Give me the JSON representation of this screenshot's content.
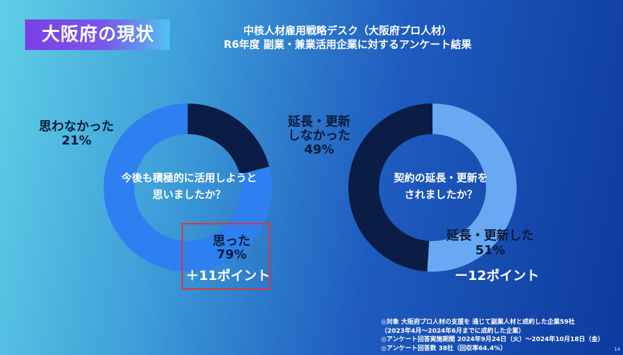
{
  "badge": "大阪府の現状",
  "header": {
    "line1": "中核人材雇用戦略デスク（大阪府プロ人材）",
    "line2": "R6年度 副業・兼業活用企業に対するアンケート結果"
  },
  "chart_data": [
    {
      "type": "pie",
      "question_line1": "今後も積極的に活用しようと",
      "question_line2": "思いましたか？",
      "slices": [
        {
          "name": "思った",
          "value": 79,
          "color": "#2e80f0"
        },
        {
          "name": "思わなかった",
          "value": 21,
          "color": "#0b1d45"
        }
      ],
      "labels": {
        "yes_name": "思った",
        "yes_pct": "79%",
        "no_name": "思わなかった",
        "no_pct": "21%"
      },
      "change": "＋11ポイント"
    },
    {
      "type": "pie",
      "question_line1": "契約の延長・更新を",
      "question_line2": "されましたか？",
      "slices": [
        {
          "name": "延長・更新した",
          "value": 51,
          "color": "#69a9f4"
        },
        {
          "name": "延長・更新しなかった",
          "value": 49,
          "color": "#0b1d45"
        }
      ],
      "labels": {
        "yes_name": "延長・更新した",
        "yes_pct": "51%",
        "no_name_1": "延長・更新",
        "no_name_2": "しなかった",
        "no_pct": "49%"
      },
      "change": "ー12ポイント"
    }
  ],
  "notes": [
    "◎対象 大阪府プロ人材の支援を 通じて副業人材と成約した企業59社",
    "（2023年4月～2024年6月までに成約した企業）",
    "◎アンケート回答実施期間 2024年9月24日（火）～2024年10月18日（金）",
    "◎アンケート回答数 38社（回収率64.4%）"
  ],
  "page": "14"
}
